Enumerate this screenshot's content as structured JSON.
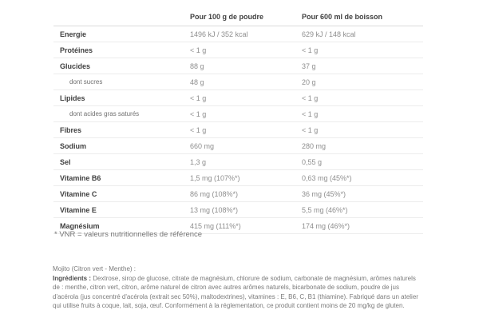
{
  "table": {
    "columns": [
      "Pour 100 g de poudre",
      "Pour 600 ml de boisson"
    ],
    "rows": [
      {
        "label": "Energie",
        "sub": false,
        "per_100g": "1496 kJ / 352 kcal",
        "per_600ml": "629 kJ / 148 kcal"
      },
      {
        "label": "Protéines",
        "sub": false,
        "per_100g": "< 1 g",
        "per_600ml": "< 1 g"
      },
      {
        "label": "Glucides",
        "sub": false,
        "per_100g": "88 g",
        "per_600ml": "37 g"
      },
      {
        "label": "dont sucres",
        "sub": true,
        "per_100g": "48 g",
        "per_600ml": "20 g"
      },
      {
        "label": "Lipides",
        "sub": false,
        "per_100g": "< 1 g",
        "per_600ml": "< 1 g"
      },
      {
        "label": "dont acides gras saturés",
        "sub": true,
        "per_100g": "< 1 g",
        "per_600ml": "< 1 g"
      },
      {
        "label": "Fibres",
        "sub": false,
        "per_100g": "< 1 g",
        "per_600ml": "< 1 g"
      },
      {
        "label": "Sodium",
        "sub": false,
        "per_100g": "660 mg",
        "per_600ml": "280 mg"
      },
      {
        "label": "Sel",
        "sub": false,
        "per_100g": "1,3 g",
        "per_600ml": "0,55 g"
      },
      {
        "label": "Vitamine B6",
        "sub": false,
        "per_100g": "1,5 mg (107%*)",
        "per_600ml": "0,63 mg (45%*)"
      },
      {
        "label": "Vitamine C",
        "sub": false,
        "per_100g": "86 mg (108%*)",
        "per_600ml": "36 mg (45%*)"
      },
      {
        "label": "Vitamine E",
        "sub": false,
        "per_100g": "13 mg (108%*)",
        "per_600ml": "5,5 mg (46%*)"
      },
      {
        "label": "Magnésium",
        "sub": false,
        "per_100g": "415 mg (111%*)",
        "per_600ml": "174 mg (46%*)"
      }
    ]
  },
  "footnote": "* VNR = valeurs nutritionnelles de référence",
  "ingredients": {
    "flavor_title": "Mojito (Citron vert - Menthe) :",
    "label": "Ingrédients :",
    "text": " Dextrose, sirop de glucose, citrate de magnésium, chlorure de sodium, carbonate de magnésium, arômes naturels de : menthe, citron vert, citron, arôme naturel de citron avec autres arômes naturels, bicarbonate de sodium, poudre de jus d'acérola (jus concentré d'acérola (extrait sec 50%), maltodextrines), vitamines : E, B6, C, B1 (thiamine). Fabriqué dans un atelier qui utilise fruits à coque, lait, soja, œuf. Conformément à la réglementation, ce produit contient moins de 20 mg/kg de gluten."
  }
}
